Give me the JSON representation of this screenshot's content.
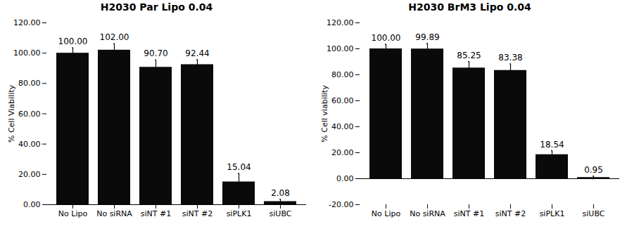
{
  "chart_data": [
    {
      "type": "bar",
      "title": "H2030 Par Lipo 0.04",
      "ylabel": "% Cell Viability",
      "categories": [
        "No Lipo",
        "No siRNA",
        "siNT #1",
        "siNT #2",
        "siPLK1",
        "siUBC"
      ],
      "values": [
        100.0,
        102.0,
        90.7,
        92.44,
        15.04,
        2.08
      ],
      "value_labels": [
        "100.00",
        "102.00",
        "90.70",
        "92.44",
        "15.04",
        "2.08"
      ],
      "errors": [
        3.5,
        4.2,
        4.8,
        3.2,
        5.5,
        1.5
      ],
      "color": "#0a0a0a",
      "ylim": [
        0,
        120
      ],
      "yticks": [
        {
          "value": 0,
          "label": "0.00"
        },
        {
          "value": 20,
          "label": "20.00"
        },
        {
          "value": 40,
          "label": "40.00"
        },
        {
          "value": 60,
          "label": "60.00"
        },
        {
          "value": 80,
          "label": "80.00"
        },
        {
          "value": 100,
          "label": "100.00"
        },
        {
          "value": 120,
          "label": "120.00"
        }
      ],
      "data_labels": true
    },
    {
      "type": "bar",
      "title": "H2030 BrM3 Lipo 0.04",
      "ylabel": "% Cell viability",
      "categories": [
        "No Lipo",
        "No siRNA",
        "siNT #1",
        "siNT #2",
        "siPLK1",
        "siUBC"
      ],
      "values": [
        100.0,
        99.89,
        85.25,
        83.38,
        18.54,
        0.95
      ],
      "value_labels": [
        "100.00",
        "99.89",
        "85.25",
        "83.38",
        "18.54",
        "0.95"
      ],
      "errors": [
        3.5,
        4.2,
        5.0,
        5.0,
        3.0,
        1.0
      ],
      "color": "#0a0a0a",
      "ylim": [
        -20,
        120
      ],
      "yticks": [
        {
          "value": -20,
          "label": "-20.00"
        },
        {
          "value": 0,
          "label": "0.00"
        },
        {
          "value": 20,
          "label": "20.00"
        },
        {
          "value": 40,
          "label": "40.00"
        },
        {
          "value": 60,
          "label": "60.00"
        },
        {
          "value": 80,
          "label": "80.00"
        },
        {
          "value": 100,
          "label": "100.00"
        },
        {
          "value": 120,
          "label": "120.00"
        }
      ],
      "data_labels": true
    }
  ]
}
